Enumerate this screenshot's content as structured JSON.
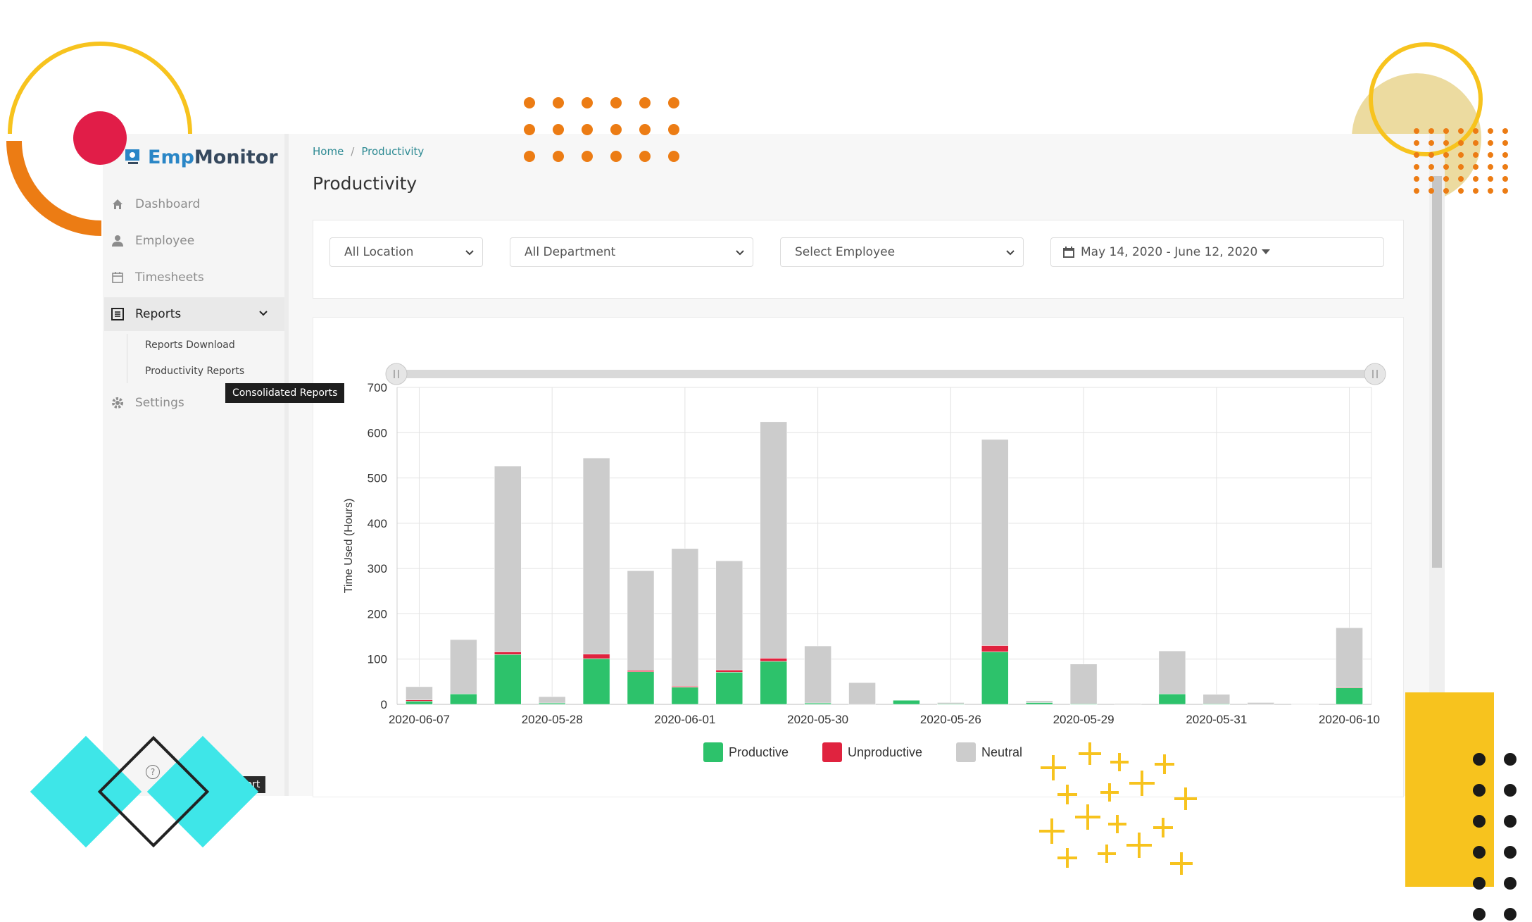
{
  "app": {
    "logo_emp": "Emp",
    "logo_monitor": "Monitor"
  },
  "sidebar": {
    "items": [
      {
        "label": "Dashboard",
        "icon": "home-icon"
      },
      {
        "label": "Employee",
        "icon": "user-icon"
      },
      {
        "label": "Timesheets",
        "icon": "calendar-icon"
      },
      {
        "label": "Reports",
        "icon": "report-icon",
        "active": true
      },
      {
        "label": "Settings",
        "icon": "gear-icon"
      }
    ],
    "report_subitems": [
      "Reports Download",
      "Productivity Reports"
    ],
    "tooltip": "Consolidated Reports",
    "bottom_url_fragment": "ty-report"
  },
  "breadcrumb": {
    "home": "Home",
    "sep": "/",
    "current": "Productivity"
  },
  "page_title": "Productivity",
  "filters": {
    "location": "All Location",
    "department": "All Department",
    "employee": "Select Employee",
    "date_range": "May 14, 2020 - June 12, 2020"
  },
  "colors": {
    "productive": "#2dc26b",
    "unproductive": "#e0233f",
    "neutral": "#cccccc",
    "accent": "#2d8a93"
  },
  "chart_data": {
    "type": "bar",
    "stacked": true,
    "ylabel": "Time Used (Hours)",
    "ylim": [
      0,
      700
    ],
    "yticks": [
      0,
      100,
      200,
      300,
      400,
      500,
      600,
      700
    ],
    "x_tick_labels": [
      "2020-06-07",
      "2020-05-28",
      "2020-06-01",
      "2020-05-30",
      "2020-05-26",
      "2020-05-29",
      "2020-05-31",
      "2020-06-10"
    ],
    "x_tick_every": 3,
    "bar_count": 22,
    "series": [
      {
        "name": "Productive",
        "values": [
          7,
          23,
          110,
          3,
          101,
          72,
          38,
          71,
          95,
          3,
          0,
          9,
          1,
          116,
          4,
          1,
          0,
          23,
          1,
          0,
          0,
          37
        ]
      },
      {
        "name": "Unproductive",
        "values": [
          3,
          0,
          6,
          0,
          10,
          3,
          2,
          5,
          7,
          0,
          0,
          0,
          0,
          14,
          0,
          0,
          0,
          0,
          0,
          0,
          0,
          1
        ]
      },
      {
        "name": "Neutral",
        "values": [
          29,
          120,
          410,
          14,
          433,
          220,
          304,
          241,
          522,
          126,
          48,
          0,
          3,
          455,
          4,
          88,
          2,
          95,
          21,
          4,
          1,
          131
        ]
      }
    ],
    "legend": "bottom-center",
    "grid": true
  }
}
